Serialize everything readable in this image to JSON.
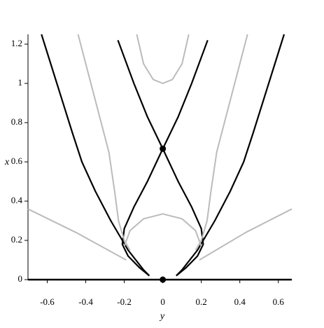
{
  "chart_data": {
    "type": "phase-portrait",
    "x_label": "y",
    "y_label": "x",
    "xlim": [
      -0.7,
      0.67
    ],
    "ylim": [
      0,
      1.25
    ],
    "xticks": [
      -0.6,
      -0.4,
      -0.2,
      0,
      0.2,
      0.4,
      0.6
    ],
    "yticks": [
      0,
      0.2,
      0.4,
      0.6,
      0.8,
      1,
      1.2
    ],
    "series": [
      {
        "color": "#000000",
        "linewidth": 2.2,
        "x": [
          -0.63,
          -0.55,
          -0.47,
          -0.42,
          -0.35,
          -0.27,
          -0.18,
          -0.1,
          -0.07
        ],
        "values": [
          1.25,
          1.0,
          0.75,
          0.6,
          0.45,
          0.3,
          0.15,
          0.05,
          0.02
        ]
      },
      {
        "color": "#000000",
        "linewidth": 2.2,
        "x": [
          0.63,
          0.55,
          0.47,
          0.42,
          0.35,
          0.27,
          0.18,
          0.1,
          0.07
        ],
        "values": [
          1.25,
          1.0,
          0.75,
          0.6,
          0.45,
          0.3,
          0.15,
          0.05,
          0.02
        ]
      },
      {
        "color": "#000000",
        "linewidth": 2.2,
        "x": [
          -0.233,
          -0.15,
          -0.08,
          0,
          0.08,
          0.15,
          0.2,
          0.21,
          0.18,
          0.12,
          0.07
        ],
        "values": [
          1.22,
          1.0,
          0.83,
          0.667,
          0.5,
          0.37,
          0.26,
          0.18,
          0.12,
          0.06,
          0.02
        ]
      },
      {
        "color": "#000000",
        "linewidth": 2.2,
        "x": [
          0.233,
          0.15,
          0.08,
          0,
          -0.08,
          -0.15,
          -0.2,
          -0.21,
          -0.18,
          -0.12,
          -0.07
        ],
        "values": [
          1.22,
          1.0,
          0.83,
          0.667,
          0.5,
          0.37,
          0.26,
          0.18,
          0.12,
          0.06,
          0.02
        ]
      },
      {
        "color": "#000000",
        "linewidth": 2.6,
        "x": [
          -0.7,
          0.67
        ],
        "values": [
          0,
          0
        ]
      },
      {
        "color": "#bbbbbb",
        "linewidth": 2,
        "x": [
          -0.135,
          -0.1,
          -0.05,
          0,
          0.05,
          0.1,
          0.135
        ],
        "values": [
          1.25,
          1.1,
          1.02,
          1.0,
          1.02,
          1.1,
          1.25
        ]
      },
      {
        "color": "#bbbbbb",
        "linewidth": 2,
        "x": [
          -0.2,
          -0.17,
          -0.1,
          0,
          0.1,
          0.17,
          0.2
        ],
        "values": [
          0.17,
          0.25,
          0.31,
          0.335,
          0.31,
          0.25,
          0.17
        ]
      },
      {
        "color": "#bbbbbb",
        "linewidth": 2,
        "x": [
          -0.44,
          -0.36,
          -0.28,
          -0.25,
          -0.23,
          -0.2,
          -0.17
        ],
        "values": [
          1.25,
          0.95,
          0.65,
          0.45,
          0.3,
          0.2,
          0.15
        ]
      },
      {
        "color": "#bbbbbb",
        "linewidth": 2,
        "x": [
          0.44,
          0.36,
          0.28,
          0.25,
          0.23,
          0.2,
          0.17
        ],
        "values": [
          1.25,
          0.95,
          0.65,
          0.45,
          0.3,
          0.2,
          0.15
        ]
      },
      {
        "color": "#bbbbbb",
        "linewidth": 2,
        "x": [
          -0.7,
          -0.45,
          -0.19
        ],
        "values": [
          0.36,
          0.24,
          0.1
        ]
      },
      {
        "color": "#bbbbbb",
        "linewidth": 2,
        "x": [
          0.67,
          0.43,
          0.19
        ],
        "values": [
          0.36,
          0.24,
          0.1
        ]
      }
    ],
    "points": {
      "color": "#000000",
      "x": [
        0,
        0
      ],
      "values": [
        0.667,
        0
      ]
    }
  }
}
